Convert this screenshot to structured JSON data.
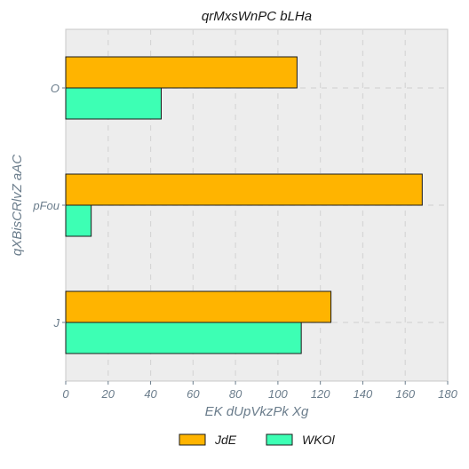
{
  "chart_data": {
    "type": "bar",
    "orientation": "horizontal",
    "title": "qrMxsWnPC bLHa",
    "xlabel": "EK dUpVkzPk Xg",
    "ylabel": "qXBisCRlvZ aAC",
    "categories": [
      "O",
      "pFou",
      "J"
    ],
    "series": [
      {
        "name": "JdE",
        "values": [
          109,
          168,
          125
        ],
        "color": "#FFB400"
      },
      {
        "name": "WKOl",
        "values": [
          45,
          12,
          111
        ],
        "color": "#3DFFB4"
      }
    ],
    "xlim": [
      0,
      180
    ],
    "xticks": [
      "0",
      "20",
      "40",
      "60",
      "80",
      "100",
      "120",
      "140",
      "160",
      "180"
    ],
    "grid": true,
    "legend_position": "bottom-center",
    "background_color": "#EDEDED"
  }
}
